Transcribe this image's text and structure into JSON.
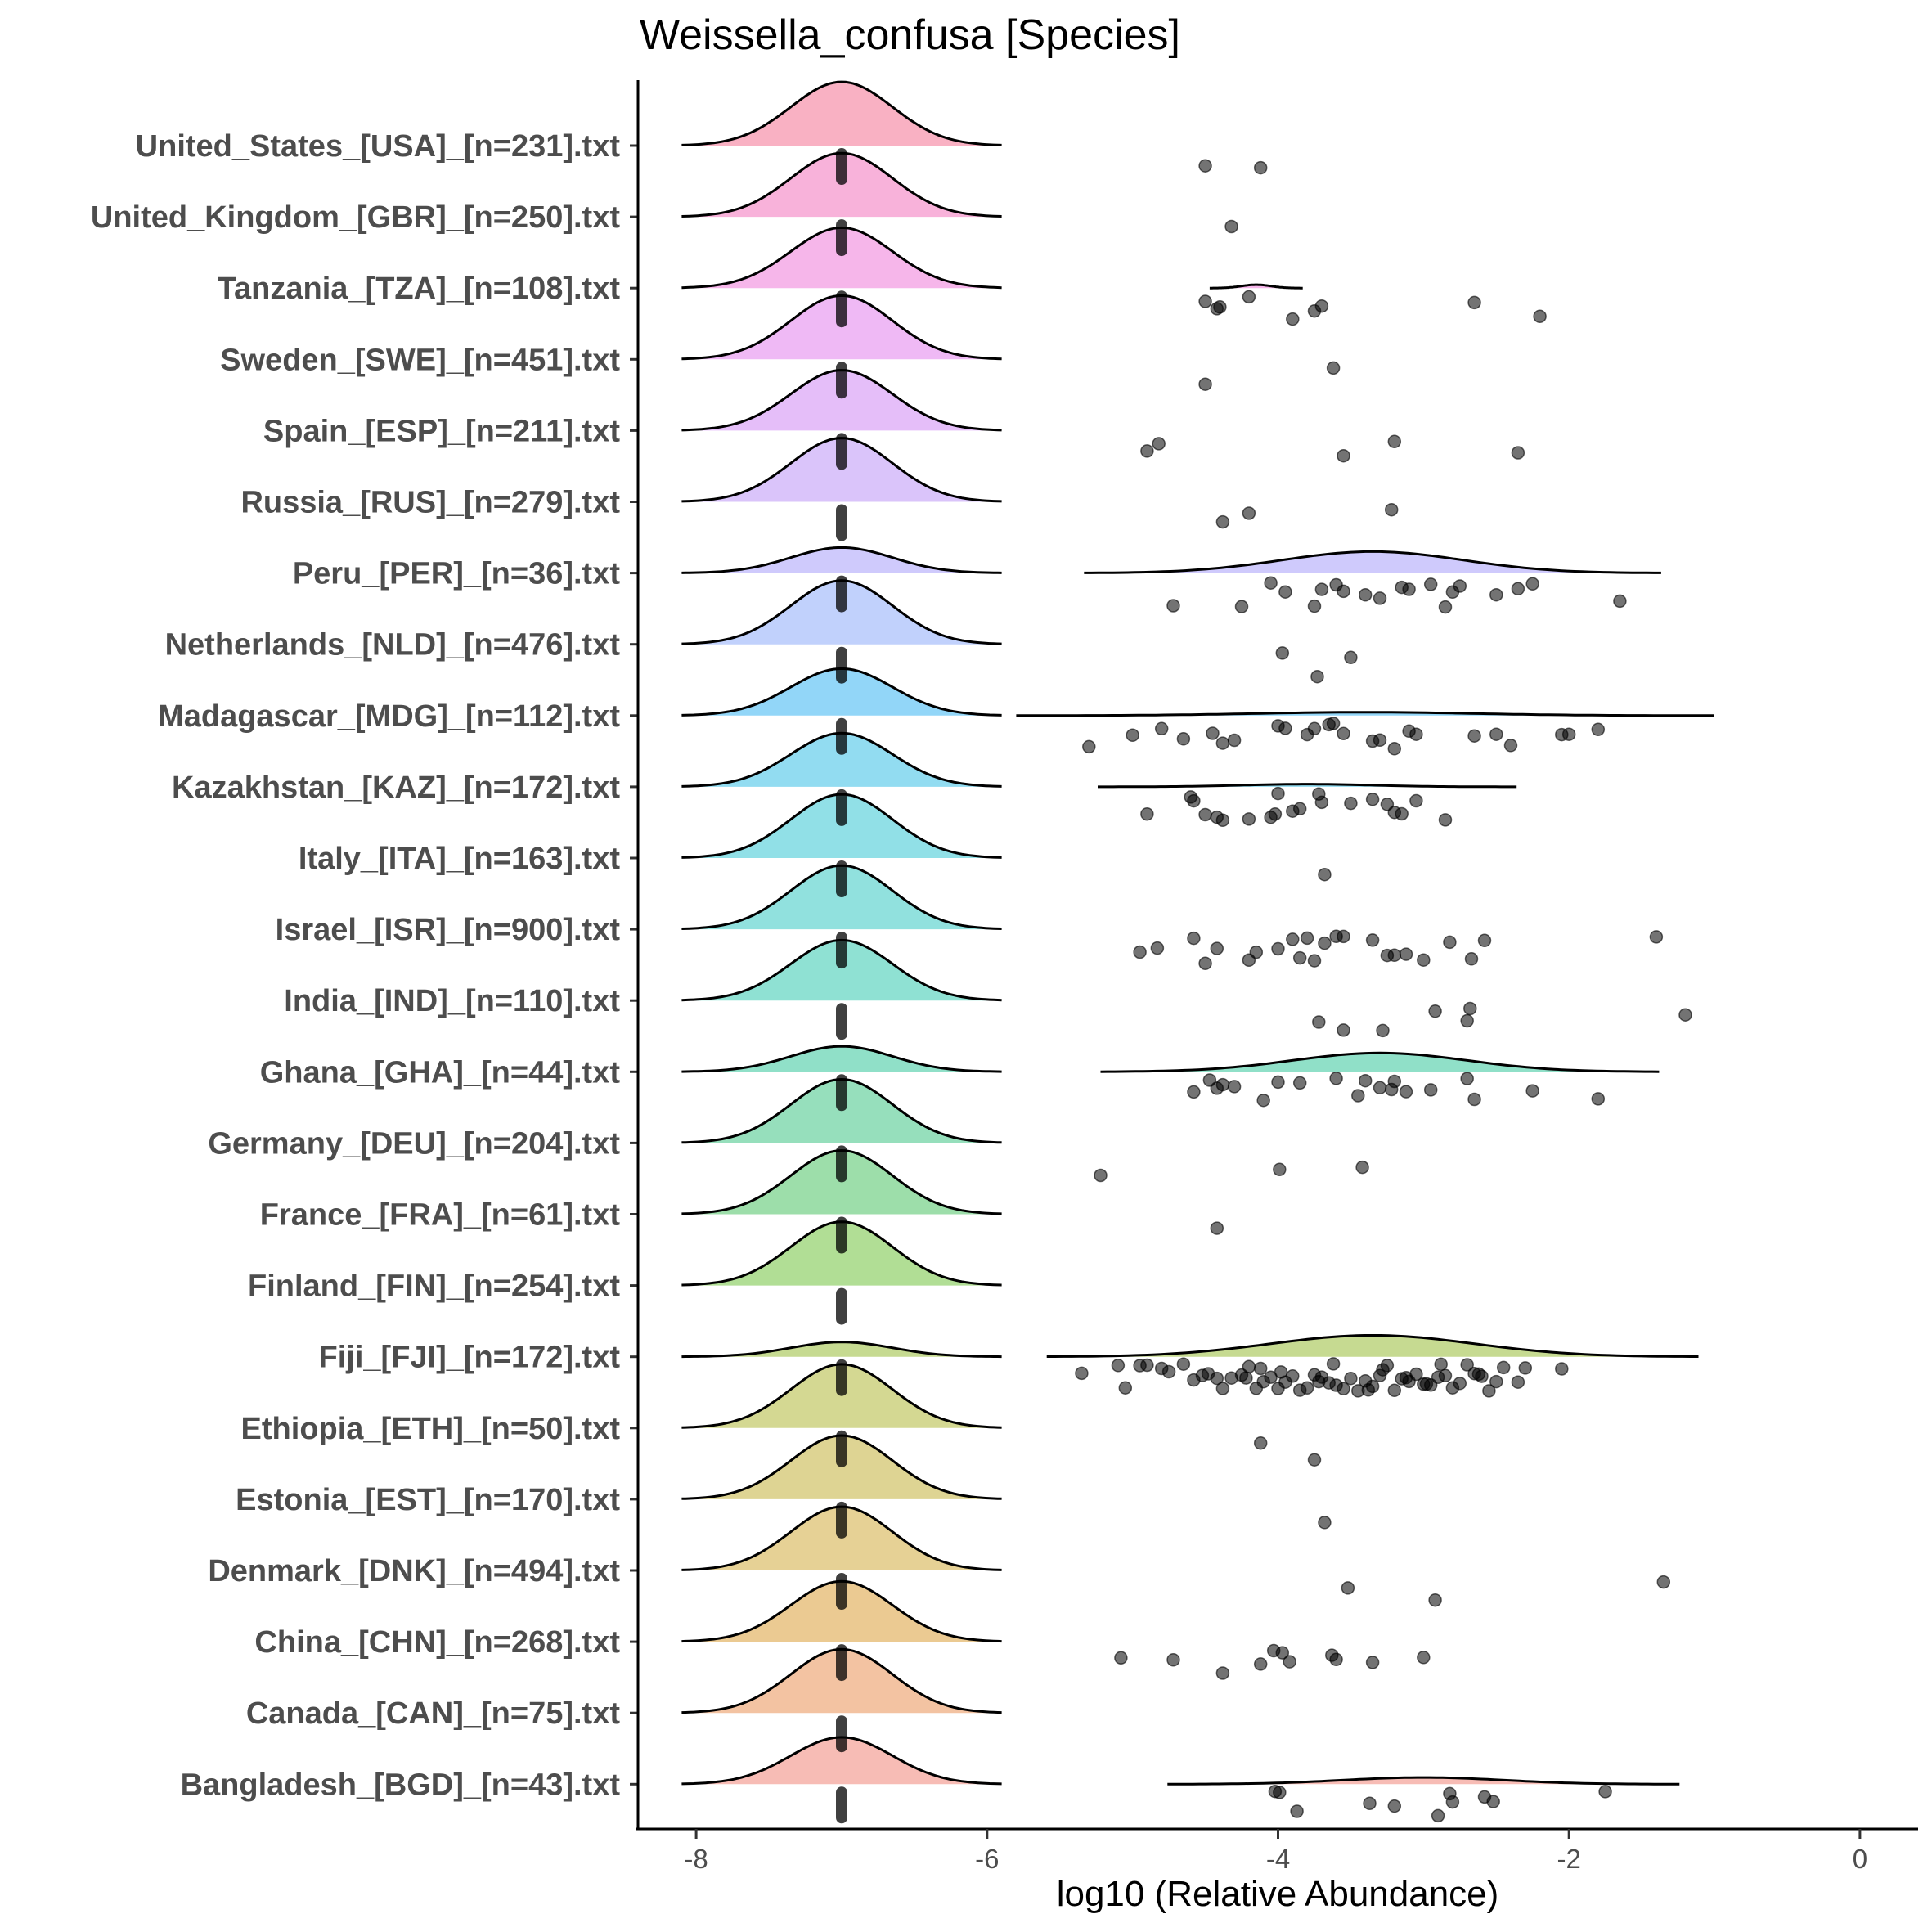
{
  "chart_data": {
    "type": "ridgeline",
    "title": "Weissella_confusa [Species]",
    "xlabel": "log10 (Relative Abundance)",
    "ylabel": "",
    "xlim": [
      -8.4,
      0.4
    ],
    "xticks": [
      -8,
      -6,
      -4,
      -2,
      0
    ],
    "xtick_labels": [
      "-8",
      "-6",
      "-4",
      "-2",
      "0"
    ],
    "baseline_value": -7,
    "groups": [
      {
        "label": "United_States_[USA]_[n=231].txt",
        "color": "#f8766d",
        "zero_density_height": 0.95,
        "zero_sd": 0.35,
        "detected": [
          -4.5,
          -4.12
        ],
        "detected_density": null
      },
      {
        "label": "United_Kingdom_[GBR]_[n=250].txt",
        "color": "#f8766d",
        "zero_density_height": 0.95,
        "zero_sd": 0.35,
        "detected": [
          -4.32
        ],
        "detected_density": null
      },
      {
        "label": "Tanzania_[TZA]_[n=108].txt",
        "color": "#f8766d",
        "zero_density_height": 0.9,
        "zero_sd": 0.35,
        "detected": [
          -4.5,
          -4.4,
          -4.42,
          -4.2,
          -3.9,
          -3.75,
          -3.7,
          -2.65,
          -2.2
        ],
        "detected_density": {
          "center": -4.15,
          "sd": 0.1,
          "height": 0.05
        }
      },
      {
        "label": "Sweden_[SWE]_[n=451].txt",
        "color": "#f8766d",
        "zero_density_height": 0.95,
        "zero_sd": 0.35,
        "detected": [
          -4.5,
          -3.62
        ],
        "detected_density": null
      },
      {
        "label": "Spain_[ESP]_[n=211].txt",
        "color": "#f8766d",
        "zero_density_height": 0.9,
        "zero_sd": 0.35,
        "detected": [
          -4.9,
          -4.82,
          -3.55,
          -3.2,
          -2.35
        ],
        "detected_density": null
      },
      {
        "label": "Russia_[RUS]_[n=279].txt",
        "color": "#f8766d",
        "zero_density_height": 0.95,
        "zero_sd": 0.35,
        "detected": [
          -4.38,
          -4.2,
          -3.22
        ],
        "detected_density": null
      },
      {
        "label": "Peru_[PER]_[n=36].txt",
        "color": "#f8766d",
        "zero_density_height": 0.38,
        "zero_sd": 0.35,
        "detected": [
          -4.72,
          -4.25,
          -4.05,
          -3.95,
          -3.75,
          -3.6,
          -3.55,
          -3.4,
          -3.3,
          -3.15,
          -2.95,
          -2.85,
          -2.8,
          -2.75,
          -2.5,
          -2.35,
          -2.25,
          -1.65,
          -3.7,
          -3.1
        ],
        "detected_density": {
          "center": -3.35,
          "sd": 0.62,
          "height": 0.32
        }
      },
      {
        "label": "Netherlands_[NLD]_[n=476].txt",
        "color": "#f8766d",
        "zero_density_height": 0.95,
        "zero_sd": 0.35,
        "detected": [
          -3.97,
          -3.73,
          -3.5
        ],
        "detected_density": null
      },
      {
        "label": "Madagascar_[MDG]_[n=112].txt",
        "color": "#f8766d",
        "zero_density_height": 0.7,
        "zero_sd": 0.35,
        "detected": [
          -5.3,
          -5.0,
          -4.8,
          -4.65,
          -4.45,
          -4.38,
          -4.3,
          -4.0,
          -3.95,
          -3.8,
          -3.65,
          -3.62,
          -3.55,
          -3.35,
          -3.3,
          -3.2,
          -3.1,
          -3.05,
          -2.65,
          -2.5,
          -2.4,
          -2.05,
          -2.0,
          -1.8,
          -3.75
        ],
        "detected_density": {
          "center": -3.4,
          "sd": 0.75,
          "height": 0.05
        }
      },
      {
        "label": "Kazakhstan_[KAZ]_[n=172].txt",
        "color": "#f8766d",
        "zero_density_height": 0.8,
        "zero_sd": 0.35,
        "detected": [
          -4.9,
          -4.6,
          -4.58,
          -4.5,
          -4.42,
          -4.38,
          -4.2,
          -4.05,
          -4.02,
          -3.9,
          -3.85,
          -3.72,
          -3.7,
          -3.5,
          -3.35,
          -3.25,
          -3.2,
          -3.15,
          -3.05,
          -2.85,
          -4.0
        ],
        "detected_density": {
          "center": -3.8,
          "sd": 0.45,
          "height": 0.04
        }
      },
      {
        "label": "Italy_[ITA]_[n=163].txt",
        "color": "#f8766d",
        "zero_density_height": 0.95,
        "zero_sd": 0.35,
        "detected": [
          -3.68
        ],
        "detected_density": null
      },
      {
        "label": "Israel_[ISR]_[n=900].txt",
        "color": "#f8766d",
        "zero_density_height": 0.95,
        "zero_sd": 0.35,
        "detected": [
          -4.95,
          -4.83,
          -4.58,
          -4.5,
          -4.42,
          -4.2,
          -4.15,
          -4.0,
          -3.9,
          -3.85,
          -3.75,
          -3.68,
          -3.55,
          -3.35,
          -3.25,
          -3.2,
          -3.12,
          -3.0,
          -2.82,
          -2.67,
          -2.58,
          -1.4,
          -3.8,
          -3.6
        ],
        "detected_density": null
      },
      {
        "label": "India_[IND]_[n=110].txt",
        "color": "#f8766d",
        "zero_density_height": 0.9,
        "zero_sd": 0.35,
        "detected": [
          -3.72,
          -3.55,
          -3.28,
          -2.92,
          -2.7,
          -2.68,
          -1.2
        ],
        "detected_density": null
      },
      {
        "label": "Ghana_[GHA]_[n=44].txt",
        "color": "#f8766d",
        "zero_density_height": 0.38,
        "zero_sd": 0.35,
        "detected": [
          -4.58,
          -4.47,
          -4.42,
          -4.38,
          -4.3,
          -4.1,
          -4.0,
          -3.85,
          -3.6,
          -3.45,
          -3.4,
          -3.22,
          -3.2,
          -3.12,
          -2.95,
          -2.7,
          -2.65,
          -2.25,
          -1.8,
          -3.3
        ],
        "detected_density": {
          "center": -3.3,
          "sd": 0.6,
          "height": 0.28
        }
      },
      {
        "label": "Germany_[DEU]_[n=204].txt",
        "color": "#f8766d",
        "zero_density_height": 0.95,
        "zero_sd": 0.35,
        "detected": [
          -5.22,
          -3.99,
          -3.42
        ],
        "detected_density": null
      },
      {
        "label": "France_[FRA]_[n=61].txt",
        "color": "#f8766d",
        "zero_density_height": 0.95,
        "zero_sd": 0.35,
        "detected": [
          -4.42
        ],
        "detected_density": null
      },
      {
        "label": "Finland_[FIN]_[n=254].txt",
        "color": "#f8766d",
        "zero_density_height": 0.95,
        "zero_sd": 0.35,
        "detected": [],
        "detected_density": null
      },
      {
        "label": "Fiji_[FJI]_[n=172].txt",
        "color": "#f8766d",
        "zero_density_height": 0.22,
        "zero_sd": 0.35,
        "detected": [
          -5.35,
          -5.1,
          -5.05,
          -4.95,
          -4.9,
          -4.8,
          -4.75,
          -4.65,
          -4.58,
          -4.52,
          -4.48,
          -4.42,
          -4.38,
          -4.32,
          -4.25,
          -4.2,
          -4.15,
          -4.1,
          -4.05,
          -4.0,
          -3.95,
          -3.9,
          -3.85,
          -3.8,
          -3.75,
          -3.7,
          -3.65,
          -3.6,
          -3.55,
          -3.5,
          -3.45,
          -3.4,
          -3.35,
          -3.3,
          -3.25,
          -3.2,
          -3.15,
          -3.1,
          -3.05,
          -3.0,
          -2.95,
          -2.9,
          -2.85,
          -2.8,
          -2.75,
          -2.7,
          -2.65,
          -2.6,
          -2.55,
          -2.5,
          -2.45,
          -2.35,
          -2.3,
          -2.05,
          -4.22,
          -3.98,
          -3.62,
          -3.38,
          -3.12,
          -2.88,
          -2.62,
          -4.12,
          -3.72,
          -3.28,
          -2.98
        ],
        "detected_density": {
          "center": -3.35,
          "sd": 0.7,
          "height": 0.32
        }
      },
      {
        "label": "Ethiopia_[ETH]_[n=50].txt",
        "color": "#f8766d",
        "zero_density_height": 0.95,
        "zero_sd": 0.35,
        "detected": [
          -4.12,
          -3.75
        ],
        "detected_density": null
      },
      {
        "label": "Estonia_[EST]_[n=170].txt",
        "color": "#f8766d",
        "zero_density_height": 0.95,
        "zero_sd": 0.35,
        "detected": [
          -3.68
        ],
        "detected_density": null
      },
      {
        "label": "Denmark_[DNK]_[n=494].txt",
        "color": "#f8766d",
        "zero_density_height": 0.95,
        "zero_sd": 0.35,
        "detected": [
          -3.52,
          -2.92,
          -1.35
        ],
        "detected_density": null
      },
      {
        "label": "China_[CHN]_[n=268].txt",
        "color": "#f8766d",
        "zero_density_height": 0.9,
        "zero_sd": 0.35,
        "detected": [
          -5.08,
          -4.72,
          -4.38,
          -4.12,
          -4.03,
          -3.97,
          -3.92,
          -3.63,
          -3.6,
          -3.35,
          -3.0
        ],
        "detected_density": null
      },
      {
        "label": "Canada_[CAN]_[n=75].txt",
        "color": "#f8766d",
        "zero_density_height": 0.95,
        "zero_sd": 0.35,
        "detected": [],
        "detected_density": null
      },
      {
        "label": "Bangladesh_[BGD]_[n=43].txt",
        "color": "#f8766d",
        "zero_density_height": 0.7,
        "zero_sd": 0.35,
        "detected": [
          -4.02,
          -3.99,
          -3.87,
          -3.37,
          -3.2,
          -2.9,
          -2.82,
          -2.8,
          -2.58,
          -2.52,
          -1.75
        ],
        "detected_density": {
          "center": -3.0,
          "sd": 0.55,
          "height": 0.1
        }
      }
    ]
  }
}
